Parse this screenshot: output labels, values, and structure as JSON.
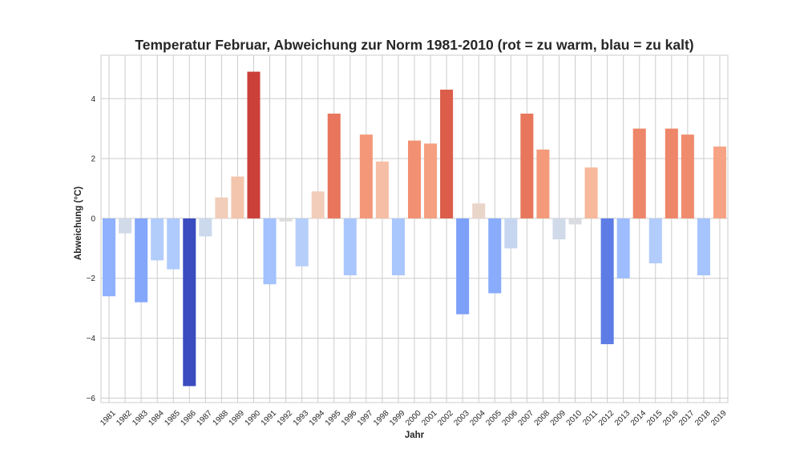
{
  "chart_data": {
    "type": "bar",
    "title": "Temperatur Februar, Abweichung zur Norm 1981-2010 (rot = zu warm, blau = zu kalt)",
    "xlabel": "Jahr",
    "ylabel": "Abweichung (°C)",
    "ylim": [
      -6.15,
      5.45
    ],
    "yticks": [
      -6,
      -4,
      -2,
      0,
      2,
      4
    ],
    "ytick_labels": [
      "−6",
      "−4",
      "−2",
      "0",
      "2",
      "4"
    ],
    "grid": true,
    "colormap": "coolwarm",
    "categories": [
      "1981",
      "1982",
      "1983",
      "1984",
      "1985",
      "1986",
      "1987",
      "1988",
      "1989",
      "1990",
      "1991",
      "1992",
      "1993",
      "1994",
      "1995",
      "1996",
      "1997",
      "1998",
      "1999",
      "2000",
      "2001",
      "2002",
      "2003",
      "2004",
      "2005",
      "2006",
      "2007",
      "2008",
      "2009",
      "2010",
      "2011",
      "2012",
      "2013",
      "2014",
      "2015",
      "2016",
      "2017",
      "2018",
      "2019"
    ],
    "values": [
      -2.6,
      -0.5,
      -2.8,
      -1.4,
      -1.7,
      -5.6,
      -0.6,
      0.7,
      1.4,
      4.9,
      -2.2,
      -0.1,
      -1.6,
      0.9,
      3.5,
      -1.9,
      2.8,
      1.9,
      -1.9,
      2.6,
      2.5,
      4.3,
      -3.2,
      0.5,
      -2.5,
      -1.0,
      3.5,
      2.3,
      -0.7,
      -0.2,
      1.7,
      -4.2,
      -2.0,
      3.0,
      -1.5,
      3.0,
      2.8,
      -1.9,
      2.4
    ],
    "colors": [
      "#8fb1fe",
      "#d1dae9",
      "#84a7fc",
      "#b3cdfb",
      "#afcafc",
      "#3b4cc0",
      "#ccd9ed",
      "#f1cdba",
      "#f4c5ad",
      "#cc403a",
      "#a3c2fe",
      "#dddcdc",
      "#b6cefa",
      "#f1cdba",
      "#e8765c",
      "#aac7fd",
      "#f39778",
      "#f6bea4",
      "#aac7fd",
      "#f29072",
      "#f5a081",
      "#dc5d4a",
      "#7da0f9",
      "#ead5c9",
      "#89acfd",
      "#c6d6f1",
      "#e8765c",
      "#f49a7b",
      "#d1dae9",
      "#d9dce1",
      "#f7b89c",
      "#5d7ce6",
      "#9dbdff",
      "#ee8669",
      "#b2ccfb",
      "#ee8669",
      "#f08b6e",
      "#a6c4fe",
      "#f6a385"
    ]
  }
}
